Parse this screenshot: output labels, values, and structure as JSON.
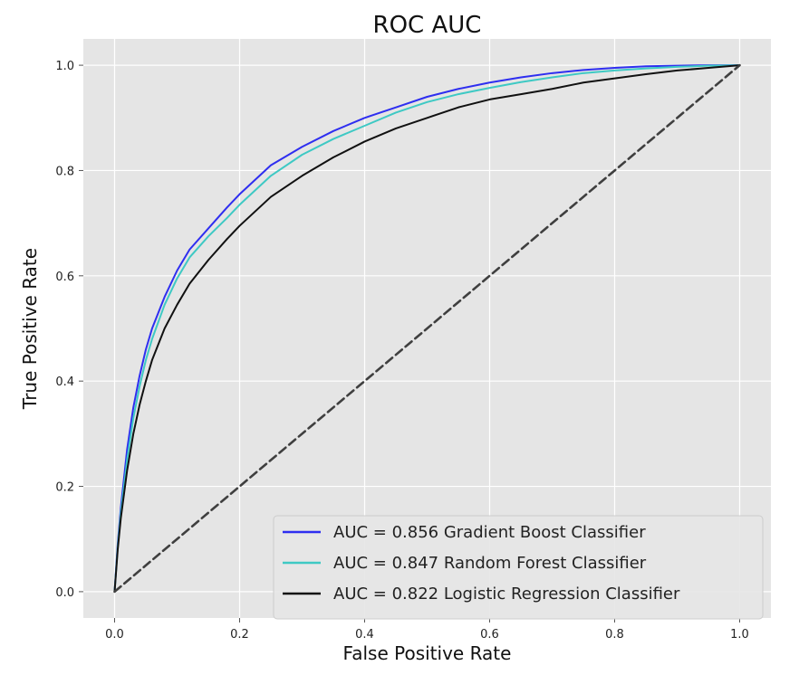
{
  "chart_data": {
    "type": "line",
    "title": "ROC AUC",
    "xlabel": "False Positive Rate",
    "ylabel": "True Positive Rate",
    "xlim": [
      -0.05,
      1.05
    ],
    "ylim": [
      -0.05,
      1.05
    ],
    "xticks": [
      0.0,
      0.2,
      0.4,
      0.6,
      0.8,
      1.0
    ],
    "xtick_labels": [
      "0.0",
      "0.2",
      "0.4",
      "0.6",
      "0.8",
      "1.0"
    ],
    "yticks": [
      0.0,
      0.2,
      0.4,
      0.6,
      0.8,
      1.0
    ],
    "ytick_labels": [
      "0.0",
      "0.2",
      "0.4",
      "0.6",
      "0.8",
      "1.0"
    ],
    "grid": true,
    "background": "#e5e5e5",
    "legend_position": "lower-right",
    "series": [
      {
        "name": "AUC = 0.856 Gradient Boost Classifier",
        "color": "#2e2ef0",
        "x": [
          0,
          0.005,
          0.01,
          0.02,
          0.03,
          0.04,
          0.05,
          0.06,
          0.08,
          0.1,
          0.12,
          0.15,
          0.18,
          0.2,
          0.25,
          0.3,
          0.35,
          0.4,
          0.45,
          0.5,
          0.55,
          0.6,
          0.65,
          0.7,
          0.75,
          0.8,
          0.85,
          0.9,
          0.95,
          1.0
        ],
        "y": [
          0,
          0.09,
          0.16,
          0.27,
          0.35,
          0.41,
          0.46,
          0.5,
          0.56,
          0.61,
          0.65,
          0.69,
          0.73,
          0.755,
          0.81,
          0.845,
          0.875,
          0.9,
          0.92,
          0.94,
          0.955,
          0.967,
          0.977,
          0.985,
          0.991,
          0.995,
          0.998,
          0.999,
          1.0,
          1.0
        ]
      },
      {
        "name": "AUC = 0.847 Random Forest Classifier",
        "color": "#3ec9c4",
        "x": [
          0,
          0.005,
          0.01,
          0.02,
          0.03,
          0.04,
          0.05,
          0.06,
          0.08,
          0.1,
          0.12,
          0.15,
          0.18,
          0.2,
          0.25,
          0.3,
          0.35,
          0.4,
          0.45,
          0.5,
          0.55,
          0.6,
          0.65,
          0.7,
          0.75,
          0.8,
          0.85,
          0.9,
          0.95,
          1.0
        ],
        "y": [
          0,
          0.085,
          0.15,
          0.25,
          0.33,
          0.39,
          0.44,
          0.48,
          0.545,
          0.595,
          0.635,
          0.675,
          0.71,
          0.735,
          0.79,
          0.83,
          0.86,
          0.885,
          0.91,
          0.93,
          0.945,
          0.957,
          0.968,
          0.977,
          0.985,
          0.99,
          0.994,
          0.997,
          0.999,
          1.0
        ]
      },
      {
        "name": "AUC = 0.822 Logistic Regression Classifier",
        "color": "#111111",
        "x": [
          0,
          0.005,
          0.01,
          0.02,
          0.03,
          0.04,
          0.05,
          0.06,
          0.08,
          0.1,
          0.12,
          0.15,
          0.18,
          0.2,
          0.25,
          0.3,
          0.35,
          0.4,
          0.45,
          0.5,
          0.55,
          0.6,
          0.65,
          0.7,
          0.75,
          0.8,
          0.85,
          0.9,
          0.95,
          1.0
        ],
        "y": [
          0,
          0.08,
          0.14,
          0.23,
          0.3,
          0.355,
          0.4,
          0.44,
          0.5,
          0.545,
          0.585,
          0.63,
          0.67,
          0.695,
          0.75,
          0.79,
          0.825,
          0.855,
          0.88,
          0.9,
          0.92,
          0.935,
          0.945,
          0.955,
          0.967,
          0.975,
          0.983,
          0.99,
          0.995,
          1.0
        ]
      },
      {
        "name": "",
        "color": "#3f3f3f",
        "dashed": true,
        "x": [
          0,
          1
        ],
        "y": [
          0,
          1
        ]
      }
    ]
  }
}
